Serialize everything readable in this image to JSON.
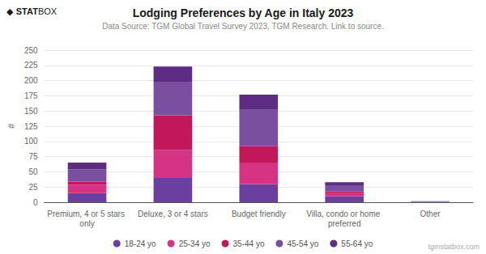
{
  "chart_data": {
    "type": "bar",
    "stacked": true,
    "title": "Lodging Preferences by Age in Italy 2023",
    "subtitle": "Data Source: TGM Global Travel Survey 2023, TGM Research. Link to source.",
    "ylabel": "#",
    "categories": [
      "Premium, 4 or 5 stars only",
      "Deluxe, 3 or 4 stars",
      "Budget friendly",
      "Villa, condo or home preferred",
      "Other"
    ],
    "series": [
      {
        "name": "18-24 yo",
        "color": "#6b3fa0",
        "values": [
          15,
          40,
          30,
          10,
          0.4
        ]
      },
      {
        "name": "25-34 yo",
        "color": "#d63384",
        "values": [
          14,
          46,
          35,
          5,
          0.3
        ]
      },
      {
        "name": "35-44 yo",
        "color": "#c2185b",
        "values": [
          5,
          57,
          27,
          3,
          0.2
        ]
      },
      {
        "name": "45-54 yo",
        "color": "#7b4fa0",
        "values": [
          20,
          55,
          60,
          10,
          0.5
        ]
      },
      {
        "name": "55-64 yo",
        "color": "#5c2d82",
        "values": [
          11,
          25,
          25,
          5,
          0.2
        ]
      }
    ],
    "ylim": [
      0,
      250
    ],
    "yticks": [
      0,
      25,
      50,
      75,
      100,
      125,
      150,
      175,
      200,
      225,
      250
    ],
    "grid": true,
    "legend": "bottom",
    "annotations": [
      "◆",
      "STAT",
      "BOX",
      "tgmstatbox.com"
    ]
  }
}
